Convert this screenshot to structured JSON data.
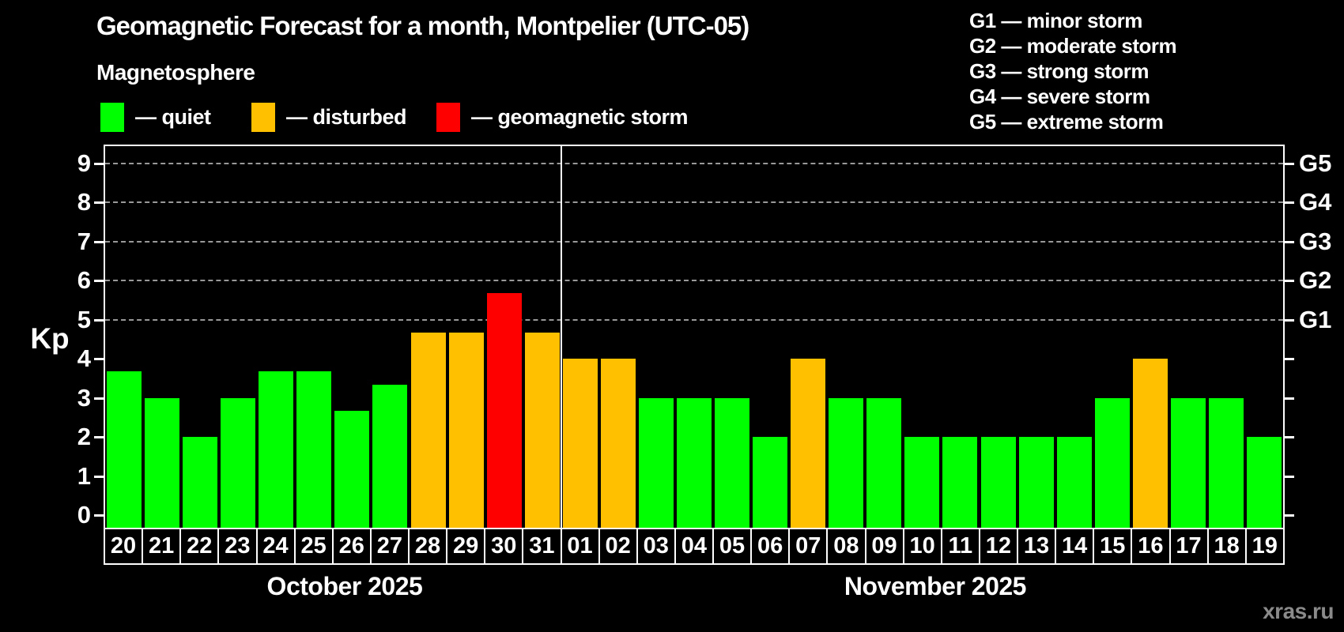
{
  "header": {
    "title": "Geomagnetic Forecast for a month, Montpelier (UTC-05)",
    "subtitle": "Magnetosphere"
  },
  "status_legend": [
    {
      "name": "quiet",
      "label": "— quiet",
      "color": "#00ff00"
    },
    {
      "name": "disturbed",
      "label": "— disturbed",
      "color": "#ffc000"
    },
    {
      "name": "storm",
      "label": "— geomagnetic storm",
      "color": "#ff0000"
    }
  ],
  "g_legend": [
    "G1 — minor storm",
    "G2 — moderate storm",
    "G3 — strong storm",
    "G4 — severe storm",
    "G5 — extreme storm"
  ],
  "watermark": "xras.ru",
  "chart_data": {
    "type": "bar",
    "title": "Geomagnetic Forecast for a month, Montpelier (UTC-05)",
    "ylabel": "Kp",
    "ylim": [
      0,
      9.5
    ],
    "y_ticks": [
      0,
      1,
      2,
      3,
      4,
      5,
      6,
      7,
      8,
      9
    ],
    "grid_levels": [
      5,
      6,
      7,
      8,
      9
    ],
    "grid": true,
    "right_axis_labels": [
      {
        "text": "G1",
        "kp": 5
      },
      {
        "text": "G2",
        "kp": 6
      },
      {
        "text": "G3",
        "kp": 7
      },
      {
        "text": "G4",
        "kp": 8
      },
      {
        "text": "G5",
        "kp": 9
      }
    ],
    "status_colors": {
      "quiet": "#00ff00",
      "disturbed": "#ffc000",
      "storm": "#ff0000"
    },
    "months": [
      {
        "label": "October 2025",
        "days": [
          {
            "day": "20",
            "kp": 3.67,
            "status": "quiet"
          },
          {
            "day": "21",
            "kp": 3.0,
            "status": "quiet"
          },
          {
            "day": "22",
            "kp": 2.0,
            "status": "quiet"
          },
          {
            "day": "23",
            "kp": 3.0,
            "status": "quiet"
          },
          {
            "day": "24",
            "kp": 3.67,
            "status": "quiet"
          },
          {
            "day": "25",
            "kp": 3.67,
            "status": "quiet"
          },
          {
            "day": "26",
            "kp": 2.67,
            "status": "quiet"
          },
          {
            "day": "27",
            "kp": 3.33,
            "status": "quiet"
          },
          {
            "day": "28",
            "kp": 4.67,
            "status": "disturbed"
          },
          {
            "day": "29",
            "kp": 4.67,
            "status": "disturbed"
          },
          {
            "day": "30",
            "kp": 5.67,
            "status": "storm"
          },
          {
            "day": "31",
            "kp": 4.67,
            "status": "disturbed"
          }
        ]
      },
      {
        "label": "November 2025",
        "days": [
          {
            "day": "01",
            "kp": 4.0,
            "status": "disturbed"
          },
          {
            "day": "02",
            "kp": 4.0,
            "status": "disturbed"
          },
          {
            "day": "03",
            "kp": 3.0,
            "status": "quiet"
          },
          {
            "day": "04",
            "kp": 3.0,
            "status": "quiet"
          },
          {
            "day": "05",
            "kp": 3.0,
            "status": "quiet"
          },
          {
            "day": "06",
            "kp": 2.0,
            "status": "quiet"
          },
          {
            "day": "07",
            "kp": 4.0,
            "status": "disturbed"
          },
          {
            "day": "08",
            "kp": 3.0,
            "status": "quiet"
          },
          {
            "day": "09",
            "kp": 3.0,
            "status": "quiet"
          },
          {
            "day": "10",
            "kp": 2.0,
            "status": "quiet"
          },
          {
            "day": "11",
            "kp": 2.0,
            "status": "quiet"
          },
          {
            "day": "12",
            "kp": 2.0,
            "status": "quiet"
          },
          {
            "day": "13",
            "kp": 2.0,
            "status": "quiet"
          },
          {
            "day": "14",
            "kp": 2.0,
            "status": "quiet"
          },
          {
            "day": "15",
            "kp": 3.0,
            "status": "quiet"
          },
          {
            "day": "16",
            "kp": 4.0,
            "status": "disturbed"
          },
          {
            "day": "17",
            "kp": 3.0,
            "status": "quiet"
          },
          {
            "day": "18",
            "kp": 3.0,
            "status": "quiet"
          },
          {
            "day": "19",
            "kp": 2.0,
            "status": "quiet"
          }
        ]
      }
    ]
  }
}
